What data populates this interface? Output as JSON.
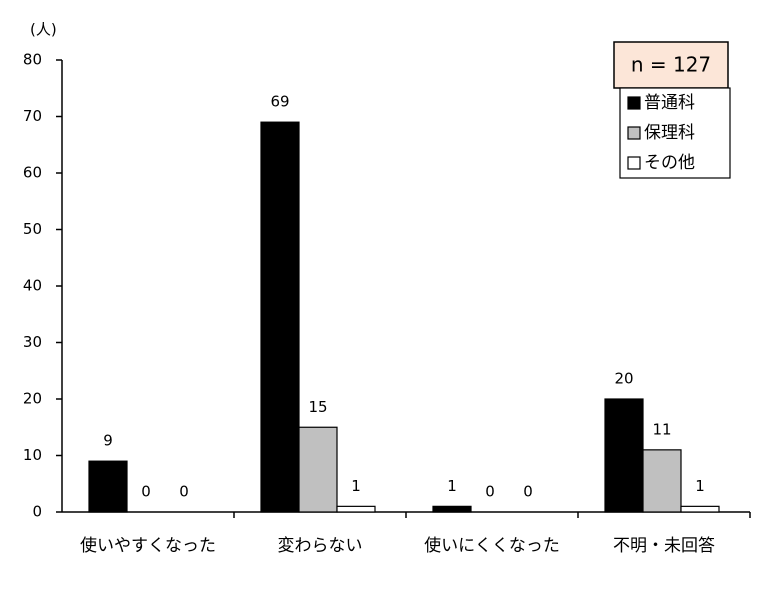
{
  "chart_data": {
    "type": "bar",
    "y_label": "(人)",
    "annotation": "n = 127",
    "categories": [
      "使いやすくなった",
      "変わらない",
      "使いにくくなった",
      "不明・未回答"
    ],
    "series": [
      {
        "name": "普通科",
        "color": "#000000",
        "values": [
          9,
          69,
          1,
          20
        ]
      },
      {
        "name": "保理科",
        "color": "#c0c0c0",
        "values": [
          0,
          15,
          0,
          11
        ]
      },
      {
        "name": "その他",
        "color": "#ffffff",
        "values": [
          0,
          1,
          0,
          1
        ]
      }
    ],
    "ylim": [
      0,
      80
    ],
    "yticks": [
      0,
      10,
      20,
      30,
      40,
      50,
      60,
      70,
      80
    ],
    "legend": "upper right",
    "grid": false
  }
}
